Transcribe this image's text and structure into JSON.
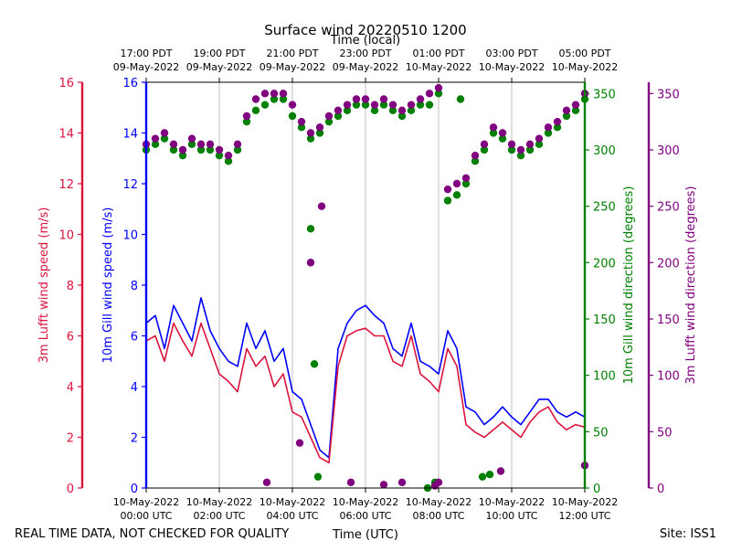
{
  "page": {
    "title": "Surface wind 20220510 1200",
    "footer_left": "REAL TIME DATA, NOT CHECKED FOR QUALITY",
    "footer_right": "Site: ISS1",
    "xlabel_bottom": "Time (UTC)",
    "xlabel_top": "Time (local)"
  },
  "colors": {
    "lufft_speed": "#dc143c",
    "gill_speed": "#0000ff",
    "gill_dir": "#008000",
    "lufft_dir": "#800080",
    "grid": "#b0b0b0"
  },
  "chart_data": {
    "type": "line",
    "title": "Surface wind 20220510 1200",
    "x_range_hours_utc": [
      0,
      12
    ],
    "x_ticks_bottom": [
      {
        "hour": 0,
        "line1": "10-May-2022",
        "line2": "00:00 UTC"
      },
      {
        "hour": 2,
        "line1": "10-May-2022",
        "line2": "02:00 UTC"
      },
      {
        "hour": 4,
        "line1": "10-May-2022",
        "line2": "04:00 UTC"
      },
      {
        "hour": 6,
        "line1": "10-May-2022",
        "line2": "06:00 UTC"
      },
      {
        "hour": 8,
        "line1": "10-May-2022",
        "line2": "08:00 UTC"
      },
      {
        "hour": 10,
        "line1": "10-May-2022",
        "line2": "10:00 UTC"
      },
      {
        "hour": 12,
        "line1": "10-May-2022",
        "line2": "12:00 UTC"
      }
    ],
    "x_ticks_top": [
      {
        "hour": 0,
        "line1": "17:00 PDT",
        "line2": "09-May-2022"
      },
      {
        "hour": 2,
        "line1": "19:00 PDT",
        "line2": "09-May-2022"
      },
      {
        "hour": 4,
        "line1": "21:00 PDT",
        "line2": "09-May-2022"
      },
      {
        "hour": 6,
        "line1": "23:00 PDT",
        "line2": "09-May-2022"
      },
      {
        "hour": 8,
        "line1": "01:00 PDT",
        "line2": "10-May-2022"
      },
      {
        "hour": 10,
        "line1": "03:00 PDT",
        "line2": "10-May-2022"
      },
      {
        "hour": 12,
        "line1": "05:00 PDT",
        "line2": "10-May-2022"
      }
    ],
    "axes": {
      "lufft_speed": {
        "label": "3m Lufft wind speed (m/s)",
        "range": [
          0,
          16
        ],
        "ticks": [
          0,
          2,
          4,
          6,
          8,
          10,
          12,
          14,
          16
        ]
      },
      "gill_speed": {
        "label": "10m Gill wind speed (m/s)",
        "range": [
          0,
          16
        ],
        "ticks": [
          0,
          2,
          4,
          6,
          8,
          10,
          12,
          14,
          16
        ]
      },
      "gill_dir": {
        "label": "10m Gill wind direction (degrees)",
        "range": [
          0,
          360
        ],
        "ticks": [
          0,
          50,
          100,
          150,
          200,
          250,
          300,
          350
        ]
      },
      "lufft_dir": {
        "label": "3m Lufft wind direction (degrees)",
        "range": [
          0,
          360
        ],
        "ticks": [
          0,
          50,
          100,
          150,
          200,
          250,
          300,
          350
        ]
      }
    },
    "series": [
      {
        "name": "10m Gill wind speed",
        "axis": "gill_speed",
        "kind": "line",
        "x": [
          0,
          0.25,
          0.5,
          0.75,
          1,
          1.25,
          1.5,
          1.75,
          2,
          2.25,
          2.5,
          2.75,
          3,
          3.25,
          3.5,
          3.75,
          4,
          4.25,
          4.5,
          4.75,
          5,
          5.25,
          5.5,
          5.75,
          6,
          6.25,
          6.5,
          6.75,
          7,
          7.25,
          7.5,
          7.75,
          8,
          8.25,
          8.5,
          8.75,
          9,
          9.25,
          9.5,
          9.75,
          10,
          10.25,
          10.5,
          10.75,
          11,
          11.25,
          11.5,
          11.75,
          12
        ],
        "y": [
          6.5,
          6.8,
          5.5,
          7.2,
          6.5,
          5.8,
          7.5,
          6.2,
          5.5,
          5.0,
          4.8,
          6.5,
          5.5,
          6.2,
          5.0,
          5.5,
          3.8,
          3.5,
          2.5,
          1.5,
          1.2,
          5.5,
          6.5,
          7.0,
          7.2,
          6.8,
          6.5,
          5.5,
          5.2,
          6.5,
          5.0,
          4.8,
          4.5,
          6.2,
          5.5,
          3.2,
          3.0,
          2.5,
          2.8,
          3.2,
          2.8,
          2.5,
          3.0,
          3.5,
          3.5,
          3.0,
          2.8,
          3.0,
          2.8
        ]
      },
      {
        "name": "3m Lufft wind speed",
        "axis": "lufft_speed",
        "kind": "line",
        "x": [
          0,
          0.25,
          0.5,
          0.75,
          1,
          1.25,
          1.5,
          1.75,
          2,
          2.25,
          2.5,
          2.75,
          3,
          3.25,
          3.5,
          3.75,
          4,
          4.25,
          4.5,
          4.75,
          5,
          5.25,
          5.5,
          5.75,
          6,
          6.25,
          6.5,
          6.75,
          7,
          7.25,
          7.5,
          7.75,
          8,
          8.25,
          8.5,
          8.75,
          9,
          9.25,
          9.5,
          9.75,
          10,
          10.25,
          10.5,
          10.75,
          11,
          11.25,
          11.5,
          11.75,
          12
        ],
        "y": [
          5.8,
          6.0,
          5.0,
          6.5,
          5.8,
          5.2,
          6.5,
          5.5,
          4.5,
          4.2,
          3.8,
          5.5,
          4.8,
          5.2,
          4.0,
          4.5,
          3.0,
          2.8,
          2.0,
          1.2,
          1.0,
          4.8,
          6.0,
          6.2,
          6.3,
          6.0,
          6.0,
          5.0,
          4.8,
          6.0,
          4.5,
          4.2,
          3.8,
          5.5,
          4.8,
          2.5,
          2.2,
          2.0,
          2.3,
          2.6,
          2.3,
          2.0,
          2.6,
          3.0,
          3.2,
          2.6,
          2.3,
          2.5,
          2.4
        ]
      },
      {
        "name": "10m Gill wind direction",
        "axis": "gill_dir",
        "kind": "scatter",
        "x": [
          0,
          0.25,
          0.5,
          0.75,
          1,
          1.25,
          1.5,
          1.75,
          2,
          2.25,
          2.5,
          2.75,
          3,
          3.25,
          3.5,
          3.75,
          4,
          4.25,
          4.5,
          4.75,
          5,
          5.25,
          5.5,
          5.75,
          6,
          6.25,
          6.5,
          6.75,
          7,
          7.25,
          7.5,
          7.75,
          8,
          8.25,
          8.5,
          8.75,
          9,
          9.25,
          9.5,
          9.75,
          10,
          10.25,
          10.5,
          10.75,
          11,
          11.25,
          11.5,
          11.75,
          12,
          4.5,
          4.5,
          4.6,
          4.7,
          7.7,
          7.9,
          9.2,
          9.4,
          8.6
        ],
        "y": [
          300,
          305,
          310,
          300,
          295,
          305,
          300,
          300,
          295,
          290,
          300,
          325,
          335,
          340,
          345,
          345,
          330,
          320,
          310,
          315,
          325,
          330,
          335,
          340,
          340,
          335,
          340,
          335,
          330,
          335,
          340,
          340,
          350,
          255,
          260,
          270,
          290,
          300,
          315,
          310,
          300,
          295,
          300,
          305,
          315,
          320,
          330,
          335,
          345,
          230,
          200,
          110,
          10,
          0,
          5,
          10,
          12,
          345
        ]
      },
      {
        "name": "3m Lufft wind direction",
        "axis": "lufft_dir",
        "kind": "scatter",
        "x": [
          0,
          0.25,
          0.5,
          0.75,
          1,
          1.25,
          1.5,
          1.75,
          2,
          2.25,
          2.5,
          2.75,
          3,
          3.25,
          3.5,
          3.75,
          4,
          4.25,
          4.5,
          4.75,
          5,
          5.25,
          5.5,
          5.75,
          6,
          6.25,
          6.5,
          6.75,
          7,
          7.25,
          7.5,
          7.75,
          8,
          8.25,
          8.5,
          8.75,
          9,
          9.25,
          9.5,
          9.75,
          10,
          10.25,
          10.5,
          10.75,
          11,
          11.25,
          11.5,
          11.75,
          12,
          4.2,
          4.5,
          4.8,
          3.3,
          5.6,
          6.5,
          7.0,
          7.9,
          8.0,
          9.7,
          12
        ],
        "y": [
          305,
          310,
          315,
          305,
          300,
          310,
          305,
          305,
          300,
          295,
          305,
          330,
          345,
          350,
          350,
          350,
          340,
          325,
          315,
          320,
          330,
          335,
          340,
          345,
          345,
          340,
          345,
          340,
          335,
          340,
          345,
          350,
          355,
          265,
          270,
          275,
          295,
          305,
          320,
          315,
          305,
          300,
          305,
          310,
          320,
          325,
          335,
          340,
          350,
          40,
          200,
          250,
          5,
          5,
          3,
          5,
          2,
          5,
          15,
          20
        ]
      }
    ]
  }
}
